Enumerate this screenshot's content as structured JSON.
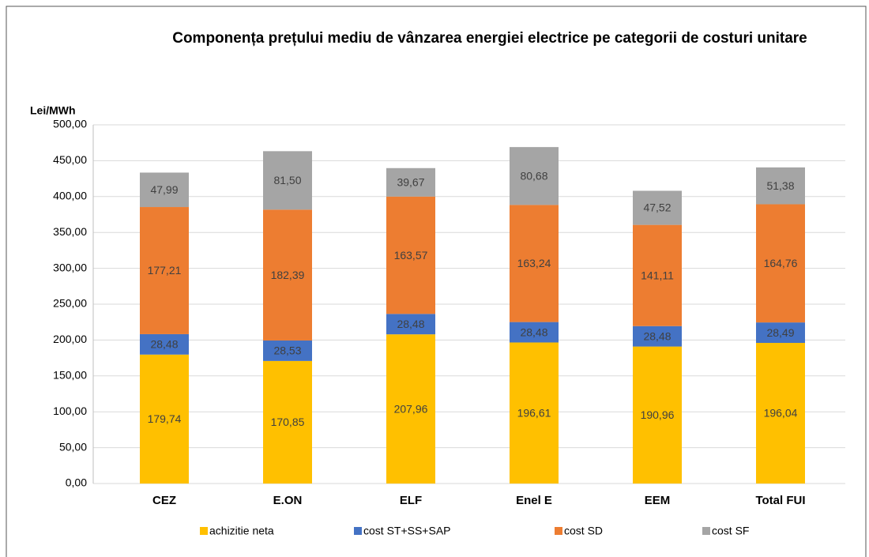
{
  "chart_data": {
    "type": "stacked_bar",
    "title": "Componența prețului mediu de vânzarea energiei electrice pe categorii de costuri unitare",
    "ylabel": "Lei/MWh",
    "categories": [
      "CEZ",
      "E.ON",
      "ELF",
      "Enel E",
      "EEM",
      "Total FUI"
    ],
    "series": [
      {
        "name": "achizitie neta",
        "color": "#FFC000",
        "values": [
          179.74,
          170.85,
          207.96,
          196.61,
          190.96,
          196.04
        ],
        "value_labels": [
          "179,74",
          "170,85",
          "207,96",
          "196,61",
          "190,96",
          "196,04"
        ]
      },
      {
        "name": "cost ST+SS+SAP",
        "color": "#4472C4",
        "values": [
          28.48,
          28.53,
          28.48,
          28.48,
          28.48,
          28.49
        ],
        "value_labels": [
          "28,48",
          "28,53",
          "28,48",
          "28,48",
          "28,48",
          "28,49"
        ]
      },
      {
        "name": "cost SD",
        "color": "#ED7D31",
        "values": [
          177.21,
          182.39,
          163.57,
          163.24,
          141.11,
          164.76
        ],
        "value_labels": [
          "177,21",
          "182,39",
          "163,57",
          "163,24",
          "141,11",
          "164,76"
        ]
      },
      {
        "name": "cost SF",
        "color": "#A5A5A5",
        "values": [
          47.99,
          81.5,
          39.67,
          80.68,
          47.52,
          51.38
        ],
        "value_labels": [
          "47,99",
          "81,50",
          "39,67",
          "80,68",
          "47,52",
          "51,38"
        ]
      }
    ],
    "ylim": [
      0,
      500
    ],
    "yticks": [
      {
        "value": 0,
        "label": "0,00"
      },
      {
        "value": 50,
        "label": "50,00"
      },
      {
        "value": 100,
        "label": "100,00"
      },
      {
        "value": 150,
        "label": "150,00"
      },
      {
        "value": 200,
        "label": "200,00"
      },
      {
        "value": 250,
        "label": "250,00"
      },
      {
        "value": 300,
        "label": "300,00"
      },
      {
        "value": 350,
        "label": "350,00"
      },
      {
        "value": 400,
        "label": "400,00"
      },
      {
        "value": 450,
        "label": "450,00"
      },
      {
        "value": 500,
        "label": "500,00"
      }
    ],
    "grid": true,
    "legend": "bottom"
  }
}
